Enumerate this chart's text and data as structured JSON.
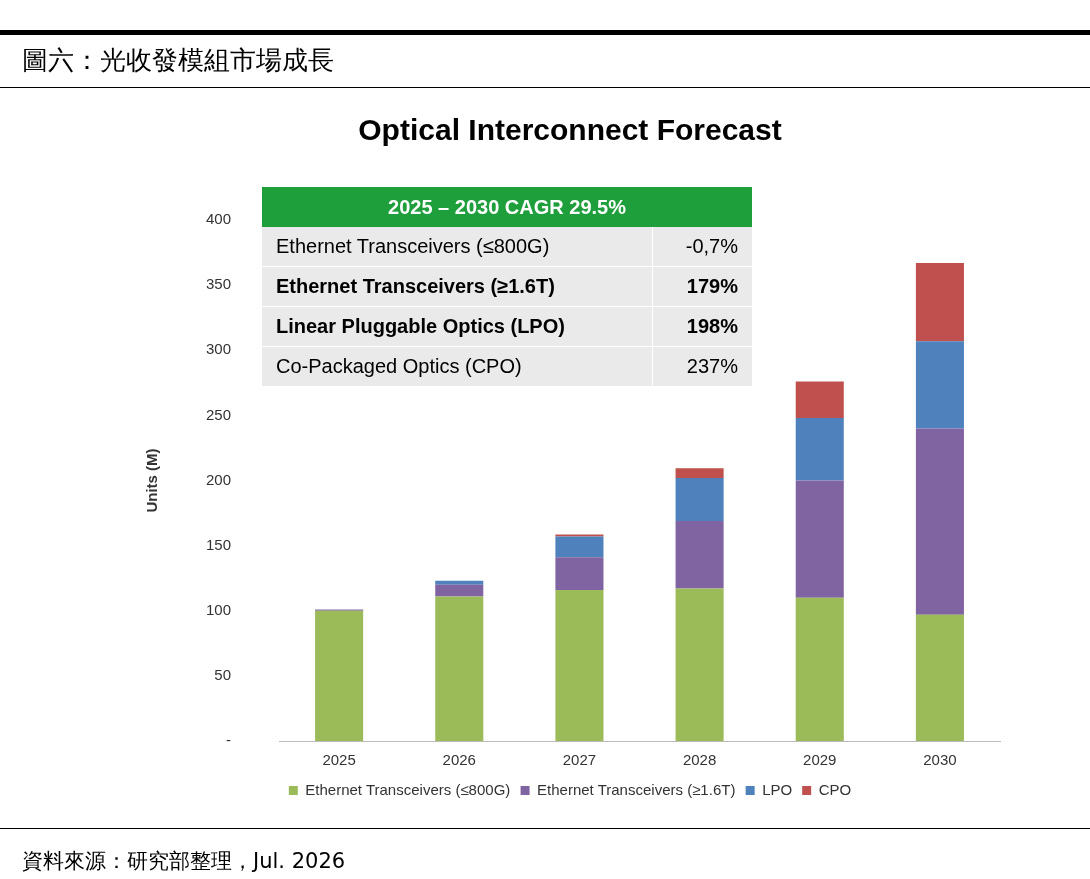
{
  "chart_data": {
    "type": "bar",
    "title": "圖六：光收發模組市場成長",
    "subtitle": "Optical Interconnect Forecast",
    "ylabel": "Units (M)",
    "categories": [
      "2025",
      "2026",
      "2027",
      "2028",
      "2029",
      "2030"
    ],
    "stacked": true,
    "series": [
      {
        "name": "Ethernet Transceivers (≤800G)",
        "color": "#9bbb59",
        "values": [
          100,
          111,
          116,
          117,
          110,
          97
        ]
      },
      {
        "name": "Ethernet Transceivers (≥1.6T)",
        "color": "#8064a2",
        "values": [
          1,
          9,
          25,
          52,
          90,
          143
        ]
      },
      {
        "name": "LPO",
        "color": "#4f81bd",
        "values": [
          0,
          3,
          16,
          33,
          48,
          67
        ]
      },
      {
        "name": "CPO",
        "color": "#c0504d",
        "values": [
          0,
          0,
          1.5,
          7.5,
          28,
          60
        ]
      }
    ],
    "ylim": [
      0,
      400
    ],
    "yticks": [
      {
        "value": 0,
        "label": "-"
      },
      50,
      100,
      150,
      200,
      250,
      300,
      350,
      400
    ],
    "grid": false,
    "legend": "bottom",
    "annotations": [
      "2025 – 2030 CAGR 29.5%",
      "Ethernet Transceivers (≤800G)",
      "-0,7%",
      "Ethernet Transceivers (≥1.6T)",
      "179%",
      "Linear Pluggable Optics (LPO)",
      "198%",
      "Co-Packaged Optics (CPO)",
      "237%",
      "資料來源：研究部整理，Jul. 2026"
    ]
  }
}
